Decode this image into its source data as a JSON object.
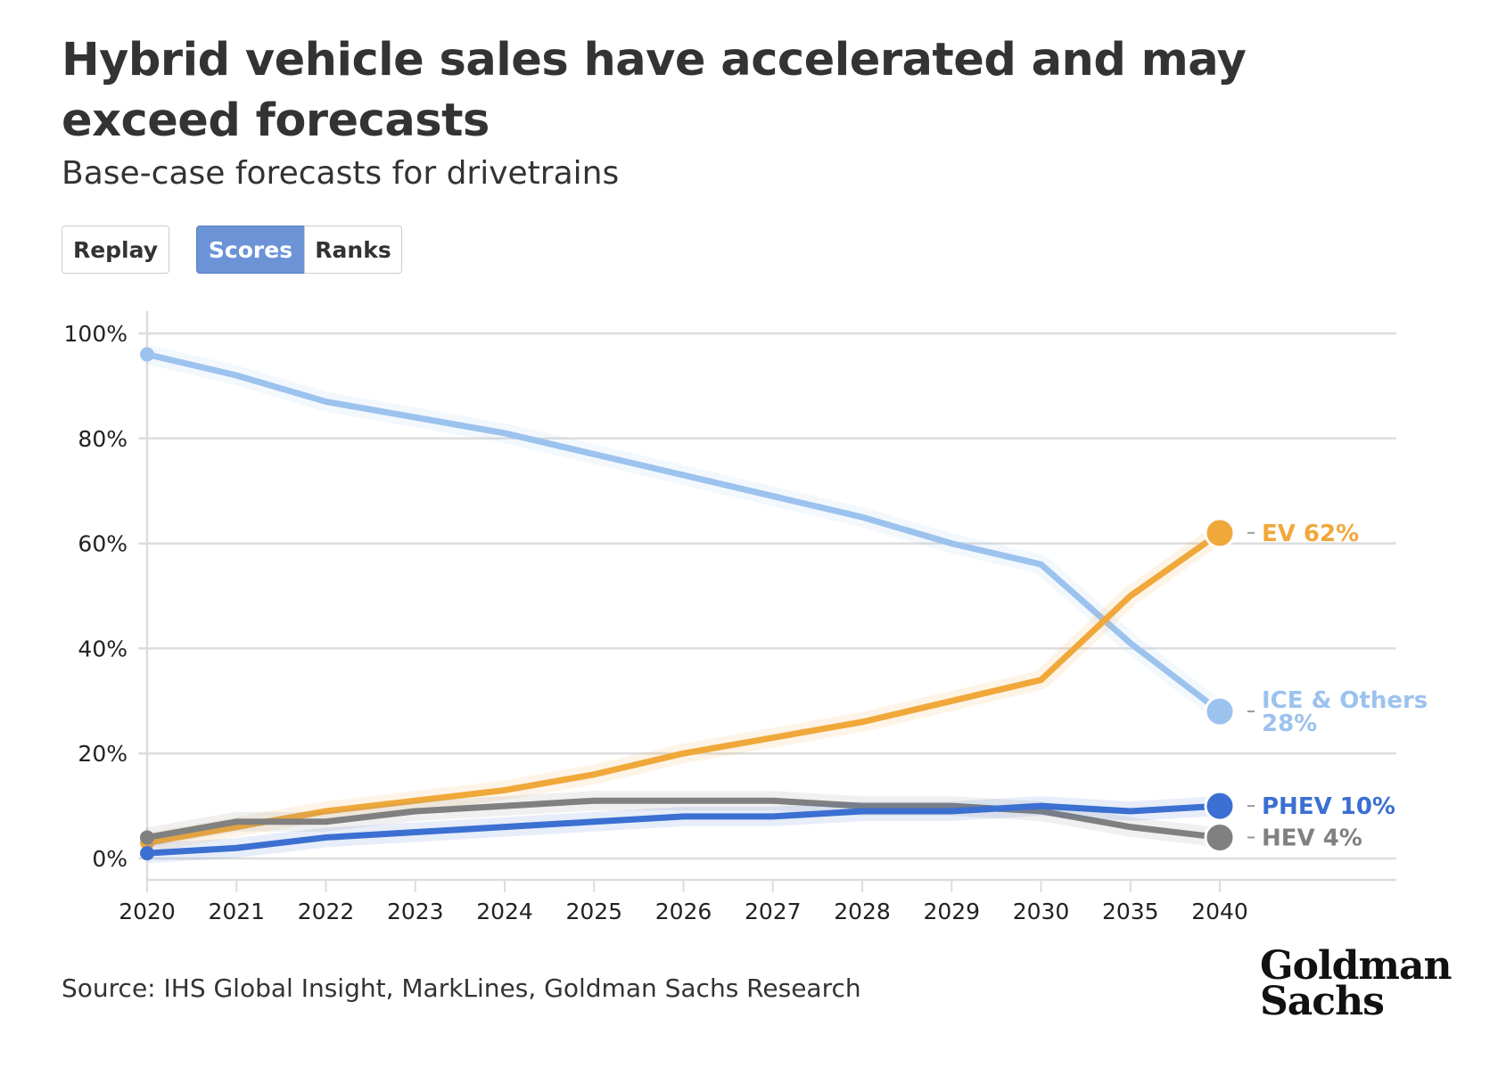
{
  "header": {
    "title": "Hybrid vehicle sales have accelerated and may exceed forecasts",
    "subtitle": "Base-case forecasts for drivetrains"
  },
  "controls": {
    "replay_label": "Replay",
    "scores_label": "Scores",
    "ranks_label": "Ranks",
    "active": "Scores",
    "accent": "#6b93d6"
  },
  "chart_data": {
    "type": "line",
    "categories": [
      "2020",
      "2021",
      "2022",
      "2023",
      "2024",
      "2025",
      "2026",
      "2027",
      "2028",
      "2029",
      "2030",
      "2035",
      "2040"
    ],
    "ylim": [
      0,
      100
    ],
    "yticks": [
      "0%",
      "20%",
      "40%",
      "60%",
      "80%",
      "100%"
    ],
    "grid": true,
    "legend": "end-labels",
    "series": [
      {
        "name": "ICE & Others",
        "end_label": "28%",
        "color": "#9cc2ee",
        "values": [
          96,
          92,
          87,
          84,
          81,
          77,
          73,
          69,
          65,
          60,
          56,
          41,
          28
        ]
      },
      {
        "name": "EV",
        "end_label": "62%",
        "color": "#f0a83a",
        "values": [
          3,
          6,
          9,
          11,
          13,
          16,
          20,
          23,
          26,
          30,
          34,
          50,
          62
        ]
      },
      {
        "name": "HEV",
        "end_label": "4%",
        "color": "#808080",
        "values": [
          4,
          7,
          7,
          9,
          10,
          11,
          11,
          11,
          10,
          10,
          9,
          6,
          4
        ]
      },
      {
        "name": "PHEV",
        "end_label": "10%",
        "color": "#3b6fd1",
        "values": [
          1,
          2,
          4,
          5,
          6,
          7,
          8,
          8,
          9,
          9,
          10,
          9,
          10
        ]
      }
    ]
  },
  "footer": {
    "source": "Source: IHS Global Insight, MarkLines, Goldman Sachs Research",
    "logo_line1": "Goldman",
    "logo_line2": "Sachs"
  }
}
